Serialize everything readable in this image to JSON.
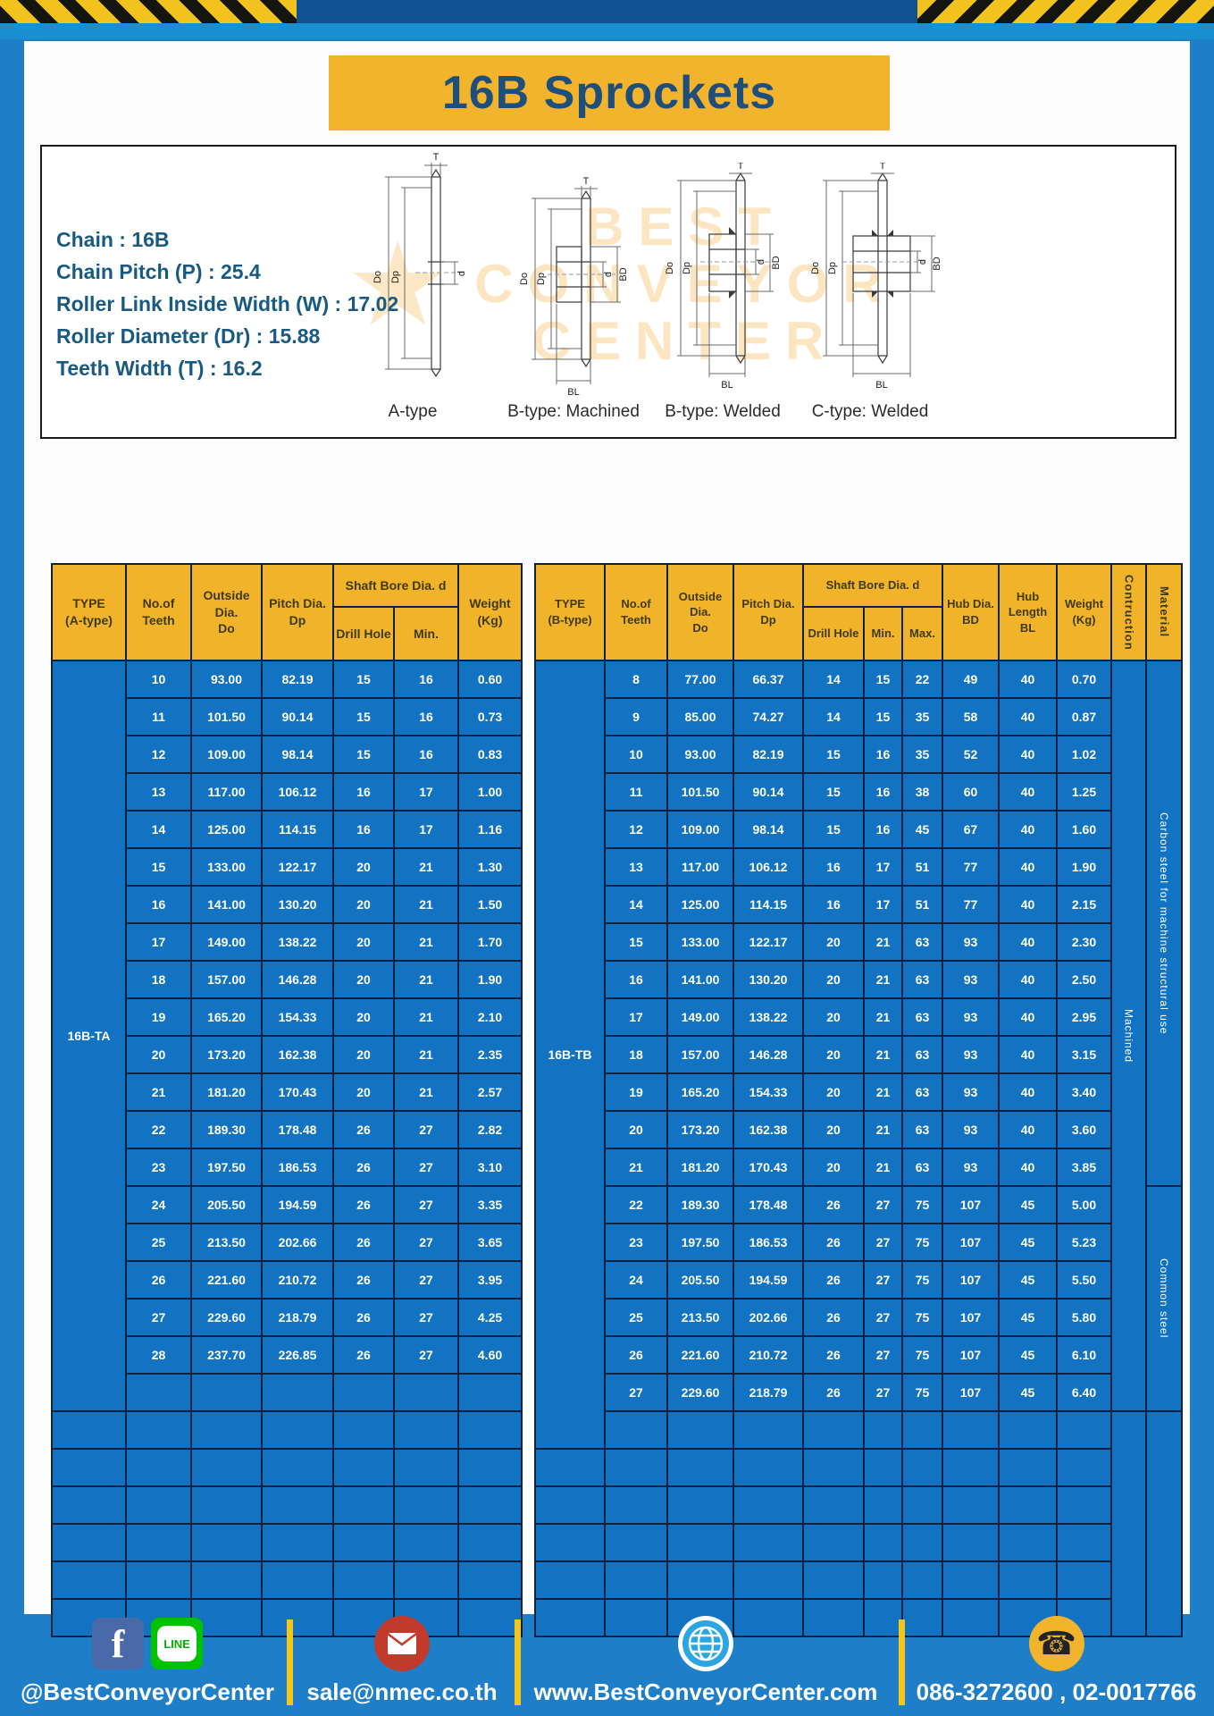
{
  "page": {
    "title": "16B Sprockets"
  },
  "specs": {
    "lines": [
      "Chain  :  16B",
      "Chain Pitch (P)  :  25.4",
      "Roller Link Inside Width (W)  :  17.02",
      "Roller Diameter (Dr)  : 15.88",
      "Teeth Width (T)  :  16.2"
    ]
  },
  "drawings": {
    "captions": [
      "A-type",
      "B-type: Machined",
      "B-type: Welded",
      "C-type: Welded"
    ],
    "dims": {
      "T": "T",
      "Do": "Do",
      "Dp": "Dp",
      "d": "d",
      "BD": "BD",
      "BL": "BL"
    },
    "watermark": [
      "BEST",
      "CONVEYOR",
      "CENTER"
    ],
    "watermark_star": "★",
    "watermark_color": "#f4a420"
  },
  "table_a": {
    "type_label": "16B-TA",
    "headers": {
      "type": "TYPE\n(A-type)",
      "teeth": "No.of\nTeeth",
      "outside": "Outside\nDia.\nDo",
      "pitch": "Pitch Dia.\nDp",
      "shaft_bore": "Shaft Bore Dia. d",
      "drill": "Drill Hole",
      "min": "Min.",
      "weight": "Weight\n(Kg)"
    },
    "rows": [
      [
        "10",
        "93.00",
        "82.19",
        "15",
        "16",
        "0.60"
      ],
      [
        "11",
        "101.50",
        "90.14",
        "15",
        "16",
        "0.73"
      ],
      [
        "12",
        "109.00",
        "98.14",
        "15",
        "16",
        "0.83"
      ],
      [
        "13",
        "117.00",
        "106.12",
        "16",
        "17",
        "1.00"
      ],
      [
        "14",
        "125.00",
        "114.15",
        "16",
        "17",
        "1.16"
      ],
      [
        "15",
        "133.00",
        "122.17",
        "20",
        "21",
        "1.30"
      ],
      [
        "16",
        "141.00",
        "130.20",
        "20",
        "21",
        "1.50"
      ],
      [
        "17",
        "149.00",
        "138.22",
        "20",
        "21",
        "1.70"
      ],
      [
        "18",
        "157.00",
        "146.28",
        "20",
        "21",
        "1.90"
      ],
      [
        "19",
        "165.20",
        "154.33",
        "20",
        "21",
        "2.10"
      ],
      [
        "20",
        "173.20",
        "162.38",
        "20",
        "21",
        "2.35"
      ],
      [
        "21",
        "181.20",
        "170.43",
        "20",
        "21",
        "2.57"
      ],
      [
        "22",
        "189.30",
        "178.48",
        "26",
        "27",
        "2.82"
      ],
      [
        "23",
        "197.50",
        "186.53",
        "26",
        "27",
        "3.10"
      ],
      [
        "24",
        "205.50",
        "194.59",
        "26",
        "27",
        "3.35"
      ],
      [
        "25",
        "213.50",
        "202.66",
        "26",
        "27",
        "3.65"
      ],
      [
        "26",
        "221.60",
        "210.72",
        "26",
        "27",
        "3.95"
      ],
      [
        "27",
        "229.60",
        "218.79",
        "26",
        "27",
        "4.25"
      ],
      [
        "28",
        "237.70",
        "226.85",
        "26",
        "27",
        "4.60"
      ]
    ],
    "empty_rows": 7
  },
  "table_b": {
    "type_label": "16B-TB",
    "headers": {
      "type": "TYPE\n(B-type)",
      "teeth": "No.of\nTeeth",
      "outside": "Outside\nDia.\nDo",
      "pitch": "Pitch Dia.\nDp",
      "shaft_bore": "Shaft Bore Dia. d",
      "drill": "Drill Hole",
      "min": "Min.",
      "max": "Max.",
      "hub_dia": "Hub Dia.\nBD",
      "hub_len": "Hub\nLength\nBL",
      "weight": "Weight\n(Kg)",
      "construction": "Contruction",
      "material": "Material"
    },
    "rows": [
      [
        "8",
        "77.00",
        "66.37",
        "14",
        "15",
        "22",
        "49",
        "40",
        "0.70"
      ],
      [
        "9",
        "85.00",
        "74.27",
        "14",
        "15",
        "35",
        "58",
        "40",
        "0.87"
      ],
      [
        "10",
        "93.00",
        "82.19",
        "15",
        "16",
        "35",
        "52",
        "40",
        "1.02"
      ],
      [
        "11",
        "101.50",
        "90.14",
        "15",
        "16",
        "38",
        "60",
        "40",
        "1.25"
      ],
      [
        "12",
        "109.00",
        "98.14",
        "15",
        "16",
        "45",
        "67",
        "40",
        "1.60"
      ],
      [
        "13",
        "117.00",
        "106.12",
        "16",
        "17",
        "51",
        "77",
        "40",
        "1.90"
      ],
      [
        "14",
        "125.00",
        "114.15",
        "16",
        "17",
        "51",
        "77",
        "40",
        "2.15"
      ],
      [
        "15",
        "133.00",
        "122.17",
        "20",
        "21",
        "63",
        "93",
        "40",
        "2.30"
      ],
      [
        "16",
        "141.00",
        "130.20",
        "20",
        "21",
        "63",
        "93",
        "40",
        "2.50"
      ],
      [
        "17",
        "149.00",
        "138.22",
        "20",
        "21",
        "63",
        "93",
        "40",
        "2.95"
      ],
      [
        "18",
        "157.00",
        "146.28",
        "20",
        "21",
        "63",
        "93",
        "40",
        "3.15"
      ],
      [
        "19",
        "165.20",
        "154.33",
        "20",
        "21",
        "63",
        "93",
        "40",
        "3.40"
      ],
      [
        "20",
        "173.20",
        "162.38",
        "20",
        "21",
        "63",
        "93",
        "40",
        "3.60"
      ],
      [
        "21",
        "181.20",
        "170.43",
        "20",
        "21",
        "63",
        "93",
        "40",
        "3.85"
      ],
      [
        "22",
        "189.30",
        "178.48",
        "26",
        "27",
        "75",
        "107",
        "45",
        "5.00"
      ],
      [
        "23",
        "197.50",
        "186.53",
        "26",
        "27",
        "75",
        "107",
        "45",
        "5.23"
      ],
      [
        "24",
        "205.50",
        "194.59",
        "26",
        "27",
        "75",
        "107",
        "45",
        "5.50"
      ],
      [
        "25",
        "213.50",
        "202.66",
        "26",
        "27",
        "75",
        "107",
        "45",
        "5.80"
      ],
      [
        "26",
        "221.60",
        "210.72",
        "26",
        "27",
        "75",
        "107",
        "45",
        "6.10"
      ],
      [
        "27",
        "229.60",
        "218.79",
        "26",
        "27",
        "75",
        "107",
        "45",
        "6.40"
      ]
    ],
    "construction": "Machined",
    "materials": [
      {
        "label": "Carbon steel for machine structural use",
        "rows": 14
      },
      {
        "label": "Common steel",
        "rows": 6
      }
    ],
    "empty_rows": 6
  },
  "footer": {
    "handle": "@BestConveyorCenter",
    "email": "sale@nmec.co.th",
    "website": "www.BestConveyorCenter.com",
    "phones": "086-3272600 , 02-0017766",
    "glyphs": {
      "facebook": "f",
      "line": "LINE",
      "phone": "☎"
    }
  }
}
